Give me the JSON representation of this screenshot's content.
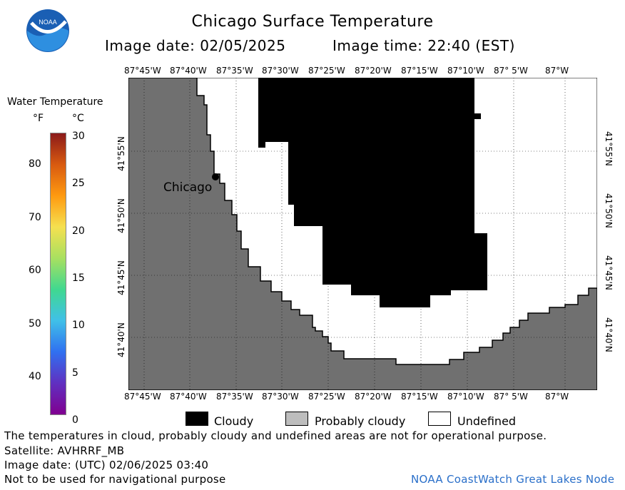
{
  "header": {
    "title": "Chicago Surface Temperature",
    "image_date": "Image date: 02/05/2025",
    "image_time": "Image time: 22:40 (EST)",
    "logo_text": "NOAA"
  },
  "colorbar": {
    "title": "Water Temperature",
    "unit_f": "°F",
    "unit_c": "°C",
    "f_ticks": [
      "80",
      "70",
      "60",
      "50",
      "40"
    ],
    "c_ticks": [
      "30",
      "25",
      "20",
      "15",
      "10",
      "5",
      "0"
    ],
    "colors": [
      "#8B1A1A",
      "#D85A10",
      "#FF9A10",
      "#F5E050",
      "#A8E060",
      "#40D890",
      "#40C0E8",
      "#3070F0",
      "#6030C0",
      "#800090"
    ]
  },
  "map": {
    "lon_labels_top": [
      "87°45'W",
      "87°40'W",
      "87°35'W",
      "87°30'W",
      "87°25'W",
      "87°20'W",
      "87°15'W",
      "87°10'W",
      "87° 5'W",
      "87°W"
    ],
    "lon_labels_bottom": [
      "87°45'W",
      "87°40'W",
      "87°35'W",
      "87°30'W",
      "87°25'W",
      "87°20'W",
      "87°15'W",
      "87°10'W",
      "87° 5'W",
      "87°W"
    ],
    "lat_labels_left": [
      "41°55'N",
      "41°50'N",
      "41°45'N",
      "41°40'N"
    ],
    "lat_labels_right": [
      "41°55'N",
      "41°50'N",
      "41°45'N",
      "41°40'N"
    ],
    "city_label": "Chicago",
    "land_color": "#707070",
    "cloud_color": "#000000"
  },
  "legend": {
    "cloudy": "Cloudy",
    "probably_cloudy": "Probably cloudy",
    "undefined": "Undefined"
  },
  "footer": {
    "disclaimer": "The temperatures in cloud, probably cloudy and undefined areas are not for operational purpose.",
    "satellite": "Satellite: AVHRRF_MB",
    "utc_date": "Image date: (UTC) 02/06/2025  03:40",
    "nav_warning": "Not to be used for navigational purpose",
    "credit": "NOAA CoastWatch Great Lakes Node"
  }
}
